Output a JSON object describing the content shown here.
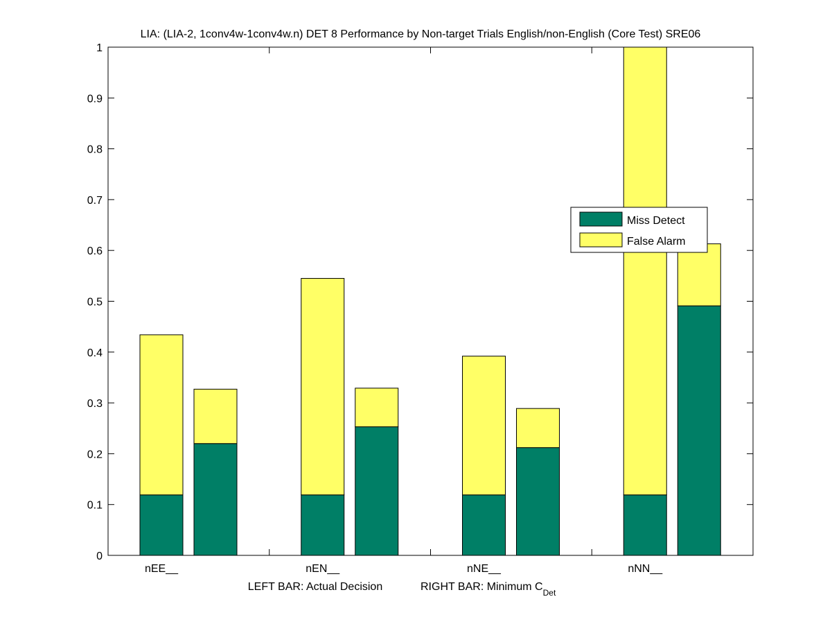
{
  "chart_data": {
    "type": "bar",
    "stacked": true,
    "title": "LIA: (LIA-2, 1conv4w-1conv4w.n) DET 8 Performance by Non-target Trials English/non-English (Core Test) SRE06",
    "xlabel_left": "LEFT BAR: Actual Decision",
    "xlabel_right": "RIGHT BAR: Minimum C",
    "xlabel_right_subscript": "Det",
    "ylabel": "",
    "ylim": [
      0,
      1
    ],
    "yticks": [
      "0",
      "0.1",
      "0.2",
      "0.3",
      "0.4",
      "0.5",
      "0.6",
      "0.7",
      "0.8",
      "0.9",
      "1"
    ],
    "categories": [
      "nEE__",
      "nEN__",
      "nNE__",
      "nNN__"
    ],
    "bar_pairs": [
      "Actual Decision",
      "Minimum CDet"
    ],
    "series": [
      {
        "name": "Miss Detect",
        "color": "#007f66",
        "actual": [
          0.119,
          0.119,
          0.119,
          0.119
        ],
        "minimum": [
          0.22,
          0.253,
          0.212,
          0.491
        ]
      },
      {
        "name": "False Alarm",
        "color": "#ffff66",
        "actual": [
          0.315,
          0.426,
          0.273,
          0.881
        ],
        "minimum": [
          0.107,
          0.076,
          0.077,
          0.122
        ]
      }
    ],
    "totals": {
      "actual": [
        0.434,
        0.545,
        0.392,
        1.0
      ],
      "minimum": [
        0.327,
        0.329,
        0.289,
        0.613
      ]
    },
    "legend": {
      "position": "right-middle",
      "entries": [
        "Miss Detect",
        "False Alarm"
      ]
    },
    "grid": false
  }
}
